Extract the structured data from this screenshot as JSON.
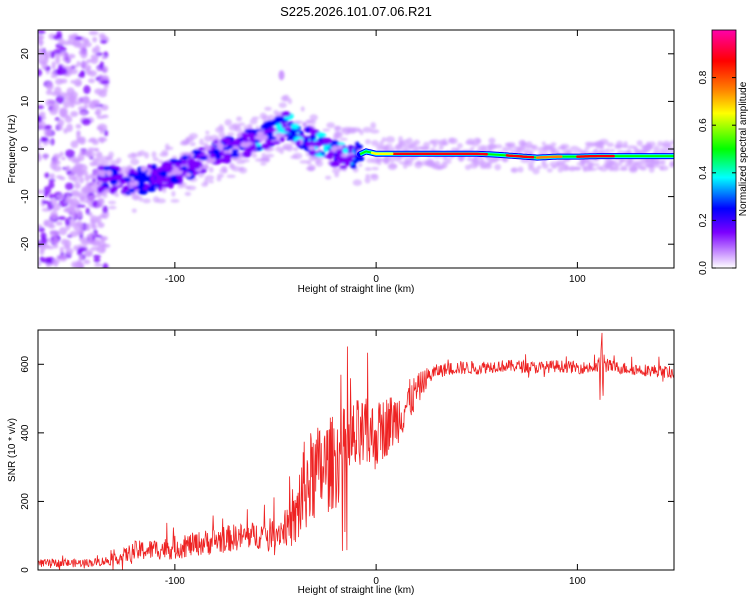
{
  "chart_data": [
    {
      "type": "heatmap",
      "title": "S225.2026.101.07.06.R21",
      "xlabel": "Height of straight line (km)",
      "ylabel": "Frequency (Hz)",
      "xlim": [
        -168,
        148
      ],
      "ylim": [
        -25,
        25
      ],
      "xticks": [
        -100,
        0,
        100
      ],
      "yticks": [
        -20,
        -10,
        0,
        10,
        20
      ],
      "ridge_x": [
        -168,
        -140,
        -130,
        -120,
        -110,
        -100,
        -90,
        -80,
        -70,
        -60,
        -50,
        -45,
        -40,
        -35,
        -30,
        -25,
        -20,
        -15,
        -10,
        -5,
        0,
        10,
        20,
        30,
        40,
        50,
        60,
        70,
        80,
        90,
        100,
        110,
        120,
        130,
        140,
        148
      ],
      "ridge_freq": [
        -7,
        -6,
        -6.5,
        -7,
        -6,
        -5,
        -3,
        -1,
        0.5,
        2,
        3.5,
        5,
        4,
        2.5,
        1,
        0,
        -1,
        -1.5,
        -1.5,
        -0.5,
        -1,
        -1,
        -1,
        -1,
        -1,
        -1,
        -1.2,
        -1.5,
        -1.8,
        -1.6,
        -1.6,
        -1.5,
        -1.5,
        -1.5,
        -1.5,
        -1.5
      ],
      "colorbar": {
        "label": "Normalized spectral amplitude",
        "range": [
          0,
          1
        ],
        "ticks": [
          0.0,
          0.2,
          0.4,
          0.6,
          0.8
        ],
        "tick_labels": [
          "0.0",
          "0.2",
          "0.4",
          "0.6",
          "0.8"
        ],
        "colors": [
          "#ffffff",
          "#cc99ff",
          "#7b00ff",
          "#0000ff",
          "#00ffff",
          "#00ff00",
          "#ffff00",
          "#ff8000",
          "#ff0000",
          "#ff00aa"
        ]
      }
    },
    {
      "type": "line",
      "xlabel": "Height of straight line (km)",
      "ylabel": "SNR (10 * v/v)",
      "xlim": [
        -168,
        148
      ],
      "ylim": [
        0,
        700
      ],
      "xticks": [
        -100,
        0,
        100
      ],
      "yticks": [
        0,
        200,
        400,
        600
      ],
      "series": [
        {
          "name": "SNR",
          "color": "#ee2222",
          "x": [
            -168,
            -150,
            -140,
            -130,
            -120,
            -110,
            -100,
            -90,
            -80,
            -70,
            -60,
            -50,
            -45,
            -40,
            -38,
            -35,
            -30,
            -25,
            -20,
            -15,
            -10,
            -5,
            0,
            5,
            10,
            15,
            20,
            25,
            30,
            40,
            50,
            60,
            70,
            80,
            90,
            100,
            110,
            112,
            115,
            120,
            130,
            140,
            148
          ],
          "mean": [
            20,
            20,
            22,
            30,
            55,
            60,
            65,
            75,
            85,
            95,
            100,
            110,
            120,
            140,
            200,
            250,
            280,
            300,
            320,
            350,
            380,
            390,
            390,
            420,
            440,
            480,
            520,
            560,
            580,
            590,
            590,
            595,
            595,
            590,
            595,
            590,
            590,
            600,
            595,
            590,
            585,
            580,
            575
          ],
          "noise": [
            12,
            12,
            12,
            15,
            30,
            30,
            35,
            35,
            40,
            40,
            40,
            45,
            50,
            80,
            140,
            140,
            140,
            140,
            140,
            130,
            120,
            110,
            100,
            90,
            80,
            70,
            50,
            30,
            20,
            20,
            20,
            18,
            18,
            18,
            18,
            18,
            18,
            60,
            20,
            18,
            18,
            18,
            18
          ]
        }
      ]
    }
  ]
}
